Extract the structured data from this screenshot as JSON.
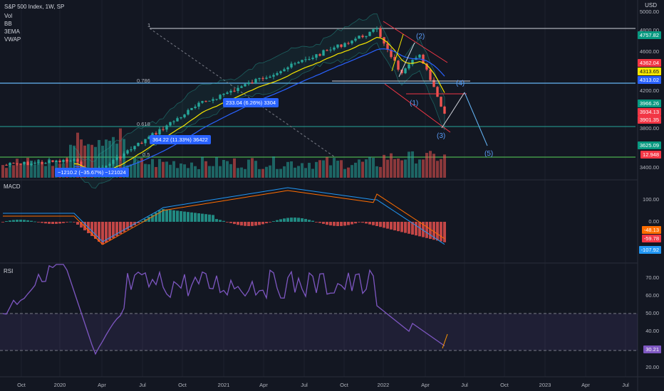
{
  "header": {
    "title": "S&P 500 Index, 1W, SP",
    "indicators": [
      "Vol",
      "BB",
      "3EMA",
      "VWAP"
    ],
    "currency": "USD"
  },
  "panes": {
    "macd_label": "MACD",
    "rsi_label": "RSI"
  },
  "price_axis": {
    "ticks": [
      "5000.00",
      "4800.00",
      "4600.00",
      "4200.00",
      "3800.00",
      "3400.00"
    ],
    "badges": [
      {
        "text": "4757.82",
        "color": "#089981"
      },
      {
        "text": "4362.04",
        "color": "#f23645"
      },
      {
        "text": "4313.65",
        "color": "#f7e600"
      },
      {
        "text": "4313.02",
        "color": "#2962ff"
      },
      {
        "text": "3966.26",
        "color": "#089981"
      },
      {
        "text": "3934.13",
        "color": "#f23645"
      },
      {
        "text": "3901.35",
        "color": "#f23645"
      },
      {
        "text": "3625.09",
        "color": "#089981"
      },
      {
        "text": "12.948",
        "color": "#f23645"
      }
    ]
  },
  "macd_axis": {
    "ticks": [
      "100.00",
      "0.00"
    ],
    "badges": [
      {
        "text": "-48.13",
        "color": "#ff6d00"
      },
      {
        "text": "-59.78",
        "color": "#f23645"
      },
      {
        "text": "-107.92",
        "color": "#2196f3"
      }
    ]
  },
  "rsi_axis": {
    "ticks": [
      "70.00",
      "60.00",
      "50.00",
      "40.00",
      "20.00"
    ],
    "badges": [
      {
        "text": "30.21",
        "color": "#7e57c2"
      }
    ]
  },
  "time_axis": [
    "Oct",
    "2020",
    "Apr",
    "Jul",
    "Oct",
    "2021",
    "Apr",
    "Jul",
    "Oct",
    "2022",
    "Apr",
    "Jul",
    "Oct",
    "2023",
    "Apr",
    "Jul"
  ],
  "fib_levels": {
    "top": "1",
    "l786": "0.786",
    "l618": "0.618",
    "l5": "0.5"
  },
  "measure_labels": {
    "m1": "233.04 (6.26%) 3304",
    "m2": "364.22 (11.33%) 36422",
    "m3": "−1210.2 (−35.67%) −121024"
  },
  "waves": {
    "w1": "(1)",
    "w2": "(2)",
    "w3": "(3)",
    "w4": "(4)",
    "w5": "(5)"
  },
  "colors": {
    "background": "#131722",
    "up": "#26a69a",
    "down": "#ef5350",
    "rsi": "#7e57c2"
  }
}
